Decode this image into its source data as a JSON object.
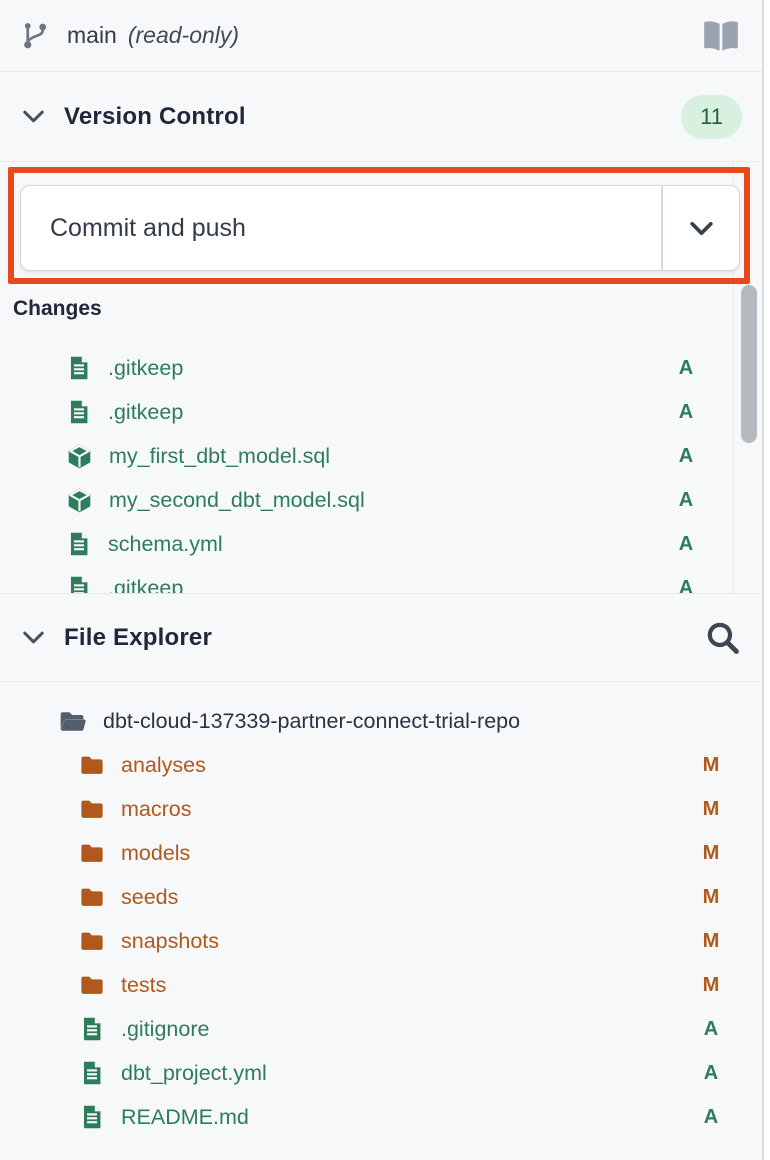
{
  "topbar": {
    "branch_icon": "git-branch-icon",
    "branch": "main",
    "mode": "(read-only)",
    "docs_icon": "book-icon"
  },
  "version_control": {
    "title": "Version Control",
    "badge": "11",
    "collapse_icon": "chevron-down-icon",
    "commit_label": "Commit and push",
    "dropdown_icon": "chevron-down-icon",
    "changes_label": "Changes",
    "changes": [
      {
        "name": ".gitkeep",
        "icon": "file",
        "status": "A"
      },
      {
        "name": ".gitkeep",
        "icon": "file",
        "status": "A"
      },
      {
        "name": "my_first_dbt_model.sql",
        "icon": "model",
        "status": "A"
      },
      {
        "name": "my_second_dbt_model.sql",
        "icon": "model",
        "status": "A"
      },
      {
        "name": "schema.yml",
        "icon": "file",
        "status": "A"
      },
      {
        "name": ".gitkeep",
        "icon": "file",
        "status": "A"
      }
    ]
  },
  "file_explorer": {
    "title": "File Explorer",
    "collapse_icon": "chevron-down-icon",
    "search_icon": "search-icon",
    "root": {
      "name": "dbt-cloud-137339-partner-connect-trial-repo",
      "icon": "folder-open"
    },
    "items": [
      {
        "name": "analyses",
        "icon": "folder",
        "color": "orange",
        "status": "M"
      },
      {
        "name": "macros",
        "icon": "folder",
        "color": "orange",
        "status": "M"
      },
      {
        "name": "models",
        "icon": "folder",
        "color": "orange",
        "status": "M"
      },
      {
        "name": "seeds",
        "icon": "folder",
        "color": "orange",
        "status": "M"
      },
      {
        "name": "snapshots",
        "icon": "folder",
        "color": "orange",
        "status": "M"
      },
      {
        "name": "tests",
        "icon": "folder",
        "color": "orange",
        "status": "M"
      },
      {
        "name": ".gitignore",
        "icon": "file",
        "color": "green",
        "status": "A"
      },
      {
        "name": "dbt_project.yml",
        "icon": "file",
        "color": "green",
        "status": "A"
      },
      {
        "name": "README.md",
        "icon": "file",
        "color": "green",
        "status": "A"
      }
    ]
  },
  "colors": {
    "green": "#2e7d5a",
    "orange": "#b1581d",
    "annotation": "#e8491c",
    "badge_bg": "#d7f0e0",
    "badge_text": "#26613f",
    "background": "#f7f8fa"
  }
}
